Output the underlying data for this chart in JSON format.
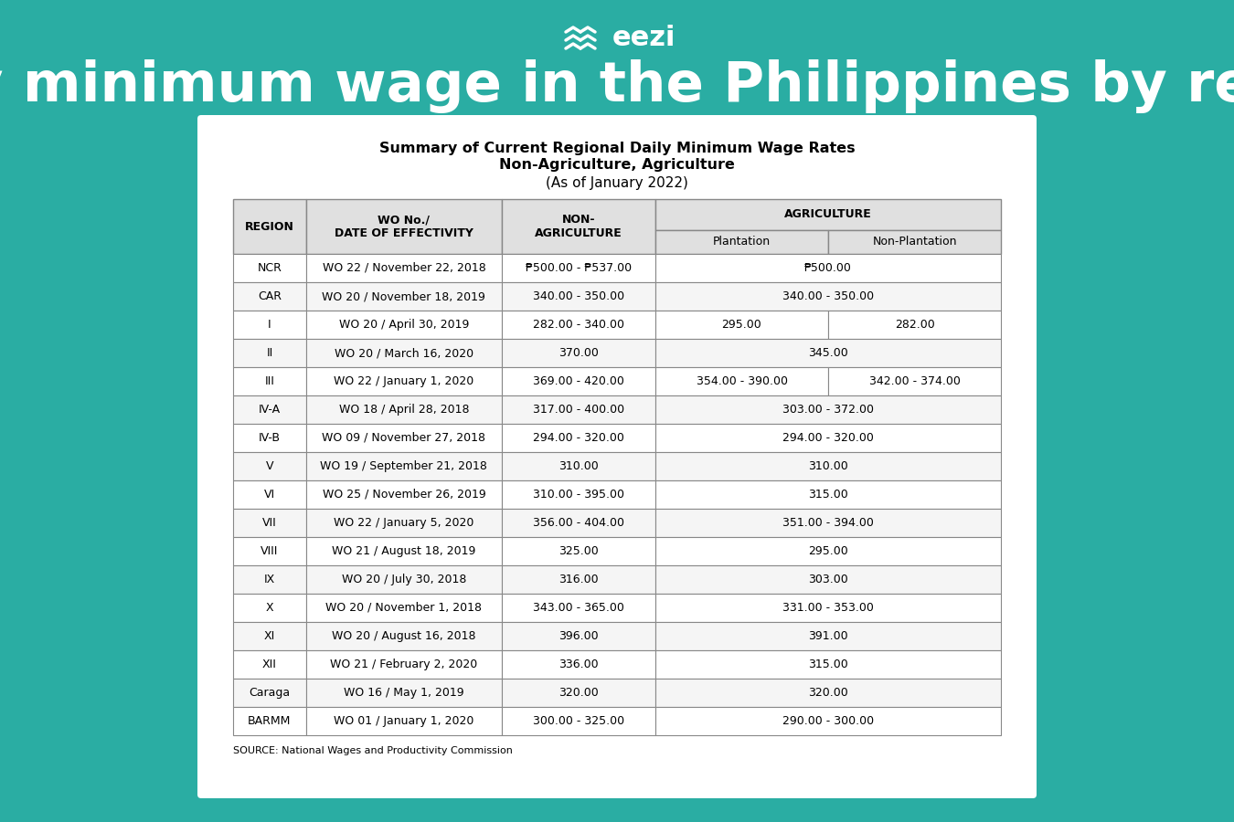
{
  "bg_color": "#2aada3",
  "table_bg": "#ffffff",
  "title_line1": "Daily minimum wage in the Philippines by region",
  "subtitle_line1": "Summary of Current Regional Daily Minimum Wage Rates",
  "subtitle_line2": "Non-Agriculture, Agriculture",
  "subtitle_line3": "(As of January 2022)",
  "source_text": "SOURCE: National Wages and Productivity Commission",
  "rows": [
    [
      "NCR",
      "WO 22 / November 22, 2018",
      "₱500.00 - ₱537.00",
      "₱500.00",
      ""
    ],
    [
      "CAR",
      "WO 20 / November 18, 2019",
      "340.00 - 350.00",
      "340.00 - 350.00",
      ""
    ],
    [
      "I",
      "WO 20 / April 30, 2019",
      "282.00 - 340.00",
      "295.00",
      "282.00"
    ],
    [
      "II",
      "WO 20 / March 16, 2020",
      "370.00",
      "345.00",
      ""
    ],
    [
      "III",
      "WO 22 / January 1, 2020",
      "369.00 - 420.00",
      "354.00 - 390.00",
      "342.00 - 374.00"
    ],
    [
      "IV-A",
      "WO 18 / April 28, 2018",
      "317.00 - 400.00",
      "303.00 - 372.00",
      ""
    ],
    [
      "IV-B",
      "WO 09 / November 27, 2018",
      "294.00 - 320.00",
      "294.00 - 320.00",
      ""
    ],
    [
      "V",
      "WO 19 / September 21, 2018",
      "310.00",
      "310.00",
      ""
    ],
    [
      "VI",
      "WO 25 / November 26, 2019",
      "310.00 - 395.00",
      "315.00",
      ""
    ],
    [
      "VII",
      "WO 22 / January 5, 2020",
      "356.00 - 404.00",
      "351.00 - 394.00",
      ""
    ],
    [
      "VIII",
      "WO 21 / August 18, 2019",
      "325.00",
      "295.00",
      ""
    ],
    [
      "IX",
      "WO 20 / July 30, 2018",
      "316.00",
      "303.00",
      ""
    ],
    [
      "X",
      "WO 20 / November 1, 2018",
      "343.00 - 365.00",
      "331.00 - 353.00",
      ""
    ],
    [
      "XI",
      "WO 20 / August 16, 2018",
      "396.00",
      "391.00",
      ""
    ],
    [
      "XII",
      "WO 21 / February 2, 2020",
      "336.00",
      "315.00",
      ""
    ],
    [
      "Caraga",
      "WO 16 / May 1, 2019",
      "320.00",
      "320.00",
      ""
    ],
    [
      "BARMM",
      "WO 01 / January 1, 2020",
      "300.00 - 325.00",
      "290.00 - 300.00",
      ""
    ]
  ],
  "header_fill": "#e0e0e0",
  "row_fill_white": "#ffffff",
  "row_fill_gray": "#f5f5f5",
  "border_color": "#888888",
  "text_color": "#000000"
}
